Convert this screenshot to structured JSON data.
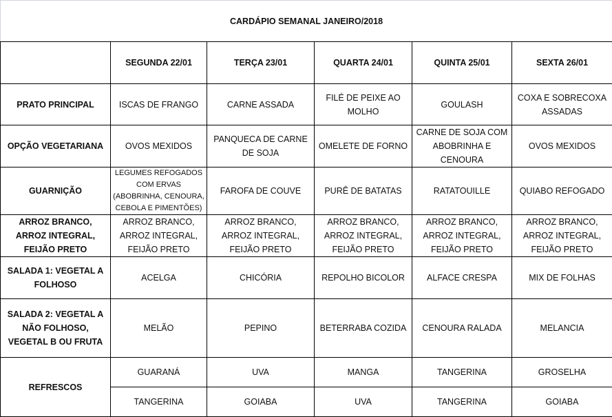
{
  "title": "CARDÁPIO SEMANAL JANEIRO/2018",
  "days": [
    "SEGUNDA  22/01",
    "TERÇA 23/01",
    "QUARTA 24/01",
    "QUINTA 25/01",
    "SEXTA 26/01"
  ],
  "rows": [
    {
      "label": "PRATO PRINCIPAL",
      "cells": [
        "ISCAS DE FRANGO",
        "CARNE ASSADA",
        "FILÉ DE PEIXE AO MOLHO",
        "GOULASH",
        "COXA E SOBRECOXA ASSADAS"
      ]
    },
    {
      "label": "OPÇÃO VEGETARIANA",
      "cells": [
        "OVOS MEXIDOS",
        "PANQUECA DE CARNE DE SOJA",
        "OMELETE DE FORNO",
        "CARNE DE SOJA COM ABOBRINHA E CENOURA",
        "OVOS MEXIDOS"
      ]
    },
    {
      "label": "GUARNIÇÃO",
      "cells": [
        "LEGUMES REFOGADOS COM ERVAS (ABOBRINHA, CENOURA, CEBOLA E PIMENTÕES)",
        "FAROFA DE COUVE",
        "PURÊ DE BATATAS",
        "RATATOUILLE",
        "QUIABO REFOGADO"
      ]
    },
    {
      "label": "ARROZ BRANCO, ARROZ INTEGRAL, FEIJÃO PRETO",
      "cells": [
        "ARROZ BRANCO, ARROZ INTEGRAL, FEIJÃO PRETO",
        "ARROZ BRANCO, ARROZ INTEGRAL, FEIJÃO PRETO",
        "ARROZ BRANCO, ARROZ INTEGRAL, FEIJÃO PRETO",
        "ARROZ BRANCO, ARROZ INTEGRAL, FEIJÃO PRETO",
        "ARROZ BRANCO, ARROZ INTEGRAL, FEIJÃO PRETO"
      ]
    },
    {
      "label": "SALADA 1: VEGETAL A FOLHOSO",
      "cells": [
        "ACELGA",
        "CHICÓRIA",
        "REPOLHO BICOLOR",
        "ALFACE CRESPA",
        "MIX DE FOLHAS"
      ]
    },
    {
      "label": "SALADA 2: VEGETAL A NÃO FOLHOSO, VEGETAL B OU FRUTA",
      "cells": [
        "MELÃO",
        "PEPINO",
        "BETERRABA COZIDA",
        "CENOURA RALADA",
        "MELANCIA"
      ]
    }
  ],
  "refrescos": {
    "label": "REFRESCOS",
    "row1": [
      "GUARANÁ",
      "UVA",
      "MANGA",
      "TANGERINA",
      "GROSELHA"
    ],
    "row2": [
      "TANGERINA",
      "GOIABA",
      "UVA",
      "TANGERINA",
      "GOIABA"
    ]
  }
}
